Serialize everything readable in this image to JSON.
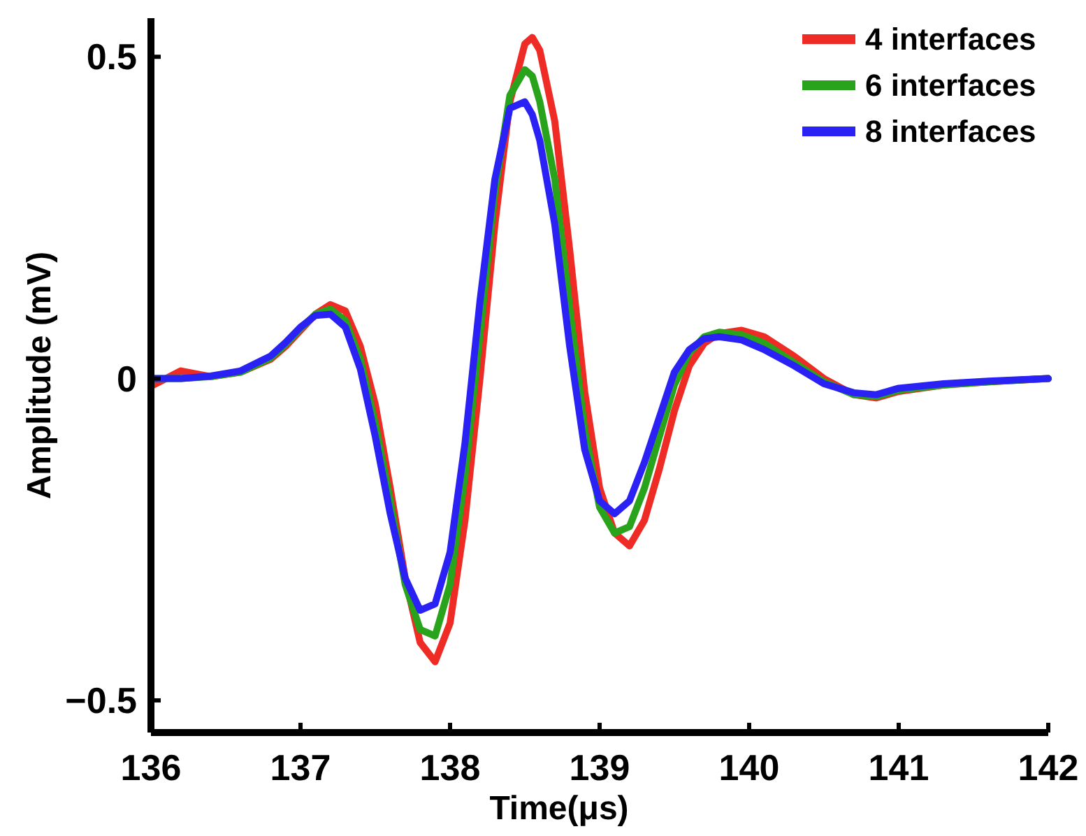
{
  "chart_data": {
    "type": "line",
    "xlabel": "Time(μs)",
    "ylabel": "Amplitude (mV)",
    "xlim": [
      136,
      142
    ],
    "ylim": [
      -0.55,
      0.56
    ],
    "xticks": [
      136,
      137,
      138,
      139,
      140,
      141,
      142
    ],
    "yticks": [
      {
        "value": -0.5,
        "label": "−0.5"
      },
      0,
      0.5
    ],
    "grid": false,
    "legend": "top right",
    "line_style": "solid",
    "marker": "none",
    "x": [
      136,
      136.2,
      136.4,
      136.6,
      136.8,
      136.9,
      137,
      137.1,
      137.2,
      137.3,
      137.4,
      137.5,
      137.6,
      137.7,
      137.8,
      137.9,
      138,
      138.1,
      138.2,
      138.3,
      138.4,
      138.5,
      138.55,
      138.6,
      138.7,
      138.8,
      138.9,
      139,
      139.1,
      139.2,
      139.3,
      139.4,
      139.5,
      139.6,
      139.7,
      139.8,
      139.95,
      140.1,
      140.3,
      140.5,
      140.7,
      140.85,
      141,
      141.3,
      141.6,
      142
    ],
    "series": [
      {
        "name": "4 interfaces",
        "color": "#ee2b24",
        "values": [
          -0.012,
          0.012,
          0.003,
          0.01,
          0.03,
          0.05,
          0.075,
          0.1,
          0.115,
          0.105,
          0.05,
          -0.04,
          -0.17,
          -0.31,
          -0.41,
          -0.44,
          -0.38,
          -0.22,
          0,
          0.24,
          0.43,
          0.52,
          0.53,
          0.51,
          0.4,
          0.2,
          -0.02,
          -0.17,
          -0.24,
          -0.26,
          -0.22,
          -0.14,
          -0.05,
          0.02,
          0.055,
          0.07,
          0.075,
          0.065,
          0.035,
          0,
          -0.025,
          -0.03,
          -0.02,
          -0.01,
          -0.005,
          0
        ]
      },
      {
        "name": "6 interfaces",
        "color": "#2aa31c",
        "values": [
          0,
          0,
          0.003,
          0.01,
          0.032,
          0.053,
          0.078,
          0.1,
          0.108,
          0.09,
          0.03,
          -0.07,
          -0.19,
          -0.32,
          -0.39,
          -0.4,
          -0.32,
          -0.15,
          0.07,
          0.29,
          0.44,
          0.48,
          0.47,
          0.43,
          0.31,
          0.11,
          -0.08,
          -0.2,
          -0.24,
          -0.23,
          -0.17,
          -0.09,
          -0.01,
          0.04,
          0.065,
          0.072,
          0.068,
          0.055,
          0.025,
          -0.005,
          -0.025,
          -0.028,
          -0.018,
          -0.01,
          -0.005,
          0
        ]
      },
      {
        "name": "8 interfaces",
        "color": "#2a22f5",
        "values": [
          0,
          0,
          0.004,
          0.012,
          0.035,
          0.056,
          0.08,
          0.098,
          0.1,
          0.08,
          0.015,
          -0.09,
          -0.21,
          -0.31,
          -0.36,
          -0.35,
          -0.27,
          -0.1,
          0.12,
          0.31,
          0.42,
          0.43,
          0.41,
          0.37,
          0.24,
          0.05,
          -0.11,
          -0.19,
          -0.21,
          -0.19,
          -0.13,
          -0.06,
          0.01,
          0.045,
          0.062,
          0.065,
          0.06,
          0.045,
          0.02,
          -0.008,
          -0.022,
          -0.025,
          -0.015,
          -0.008,
          -0.004,
          0
        ]
      }
    ]
  }
}
